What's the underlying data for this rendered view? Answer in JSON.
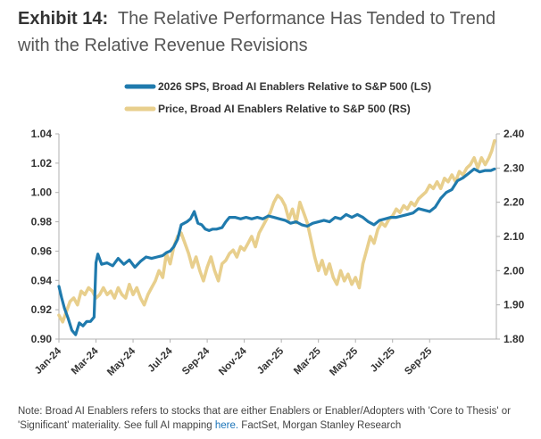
{
  "title": {
    "lead": "Exhibit 14:",
    "text": "The Relative Performance Has Tended to Trend with the Relative Revenue Revisions"
  },
  "note": {
    "prefix": "Note: Broad AI Enablers refers to stocks that are either Enablers or Enabler/Adopters with 'Core to Thesis' or 'Significant' materiality. See full AI mapping",
    "link": "here.",
    "suffix": " FactSet, Morgan Stanley Research"
  },
  "colors": {
    "sps": "#1f7aad",
    "price": "#e8cf8d",
    "axis": "#b0b0b0",
    "tick_text": "#333333"
  },
  "chart_data": {
    "type": "line",
    "xlabels": [
      "Jan-24",
      "Mar-24",
      "May-24",
      "Jul-24",
      "Sep-24",
      "Nov-24",
      "Jan-25",
      "Mar-25",
      "May-25",
      "Jul-25",
      "Sep-25"
    ],
    "x_range": [
      0,
      23.6
    ],
    "y_left": {
      "ticks": [
        "0.90",
        "0.92",
        "0.94",
        "0.96",
        "0.98",
        "1.00",
        "1.02",
        "1.04"
      ],
      "range": [
        0.9,
        1.04
      ]
    },
    "y_right": {
      "ticks": [
        "1.80",
        "1.90",
        "2.00",
        "2.10",
        "2.20",
        "2.30",
        "2.40"
      ],
      "range": [
        1.8,
        2.4
      ]
    },
    "series": [
      {
        "name": "2026 SPS, Broad AI Enablers Relative to S&P 500 (LS)",
        "axis": "left",
        "points": [
          [
            0,
            0.936
          ],
          [
            0.15,
            0.928
          ],
          [
            0.3,
            0.921
          ],
          [
            0.5,
            0.914
          ],
          [
            0.7,
            0.906
          ],
          [
            0.9,
            0.903
          ],
          [
            1.1,
            0.911
          ],
          [
            1.3,
            0.909
          ],
          [
            1.5,
            0.912
          ],
          [
            1.7,
            0.912
          ],
          [
            1.9,
            0.915
          ],
          [
            2.0,
            0.952
          ],
          [
            2.1,
            0.958
          ],
          [
            2.3,
            0.951
          ],
          [
            2.6,
            0.952
          ],
          [
            2.9,
            0.95
          ],
          [
            3.2,
            0.955
          ],
          [
            3.5,
            0.951
          ],
          [
            3.8,
            0.954
          ],
          [
            4.1,
            0.949
          ],
          [
            4.4,
            0.953
          ],
          [
            4.7,
            0.956
          ],
          [
            5.0,
            0.955
          ],
          [
            5.3,
            0.956
          ],
          [
            5.6,
            0.957
          ],
          [
            5.8,
            0.959
          ],
          [
            6.0,
            0.96
          ],
          [
            6.2,
            0.963
          ],
          [
            6.4,
            0.968
          ],
          [
            6.6,
            0.978
          ],
          [
            6.9,
            0.98
          ],
          [
            7.1,
            0.982
          ],
          [
            7.3,
            0.987
          ],
          [
            7.5,
            0.979
          ],
          [
            7.7,
            0.978
          ],
          [
            7.9,
            0.975
          ],
          [
            8.1,
            0.974
          ],
          [
            8.3,
            0.975
          ],
          [
            8.5,
            0.975
          ],
          [
            8.8,
            0.976
          ],
          [
            9.0,
            0.98
          ],
          [
            9.2,
            0.983
          ],
          [
            9.5,
            0.983
          ],
          [
            9.8,
            0.982
          ],
          [
            10.1,
            0.983
          ],
          [
            10.4,
            0.982
          ],
          [
            10.7,
            0.983
          ],
          [
            11.0,
            0.982
          ],
          [
            11.3,
            0.984
          ],
          [
            11.6,
            0.983
          ],
          [
            11.9,
            0.982
          ],
          [
            12.2,
            0.981
          ],
          [
            12.5,
            0.979
          ],
          [
            12.8,
            0.98
          ],
          [
            13.1,
            0.978
          ],
          [
            13.4,
            0.977
          ],
          [
            13.7,
            0.979
          ],
          [
            14.0,
            0.98
          ],
          [
            14.3,
            0.981
          ],
          [
            14.6,
            0.98
          ],
          [
            14.9,
            0.983
          ],
          [
            15.2,
            0.982
          ],
          [
            15.5,
            0.985
          ],
          [
            15.8,
            0.983
          ],
          [
            16.1,
            0.985
          ],
          [
            16.4,
            0.983
          ],
          [
            16.7,
            0.98
          ],
          [
            17.0,
            0.978
          ],
          [
            17.3,
            0.981
          ],
          [
            17.6,
            0.982
          ],
          [
            17.9,
            0.983
          ],
          [
            18.2,
            0.983
          ],
          [
            18.5,
            0.984
          ],
          [
            18.8,
            0.985
          ],
          [
            19.1,
            0.986
          ],
          [
            19.4,
            0.989
          ],
          [
            19.7,
            0.988
          ],
          [
            20.0,
            0.987
          ],
          [
            20.3,
            0.99
          ],
          [
            20.6,
            0.996
          ],
          [
            20.9,
            1.0
          ],
          [
            21.2,
            1.002
          ],
          [
            21.5,
            1.008
          ],
          [
            21.8,
            1.01
          ],
          [
            22.1,
            1.013
          ],
          [
            22.4,
            1.016
          ],
          [
            22.7,
            1.014
          ],
          [
            23.0,
            1.015
          ],
          [
            23.3,
            1.015
          ],
          [
            23.5,
            1.016
          ]
        ]
      },
      {
        "name": "Price, Broad AI Enablers Relative to S&P 500 (RS)",
        "axis": "right",
        "points": [
          [
            0,
            1.87
          ],
          [
            0.2,
            1.85
          ],
          [
            0.4,
            1.88
          ],
          [
            0.6,
            1.91
          ],
          [
            0.8,
            1.92
          ],
          [
            1.0,
            1.9
          ],
          [
            1.2,
            1.94
          ],
          [
            1.4,
            1.93
          ],
          [
            1.6,
            1.95
          ],
          [
            1.8,
            1.94
          ],
          [
            2.0,
            1.92
          ],
          [
            2.2,
            1.93
          ],
          [
            2.4,
            1.95
          ],
          [
            2.6,
            1.93
          ],
          [
            2.8,
            1.94
          ],
          [
            3.0,
            1.92
          ],
          [
            3.2,
            1.95
          ],
          [
            3.4,
            1.93
          ],
          [
            3.6,
            1.92
          ],
          [
            3.8,
            1.96
          ],
          [
            4.0,
            1.93
          ],
          [
            4.2,
            1.95
          ],
          [
            4.4,
            1.92
          ],
          [
            4.6,
            1.9
          ],
          [
            4.8,
            1.93
          ],
          [
            5.0,
            1.95
          ],
          [
            5.2,
            1.97
          ],
          [
            5.4,
            2.0
          ],
          [
            5.6,
            1.98
          ],
          [
            5.8,
            2.05
          ],
          [
            6.0,
            2.02
          ],
          [
            6.2,
            2.07
          ],
          [
            6.4,
            2.1
          ],
          [
            6.6,
            2.11
          ],
          [
            6.8,
            2.08
          ],
          [
            7.0,
            2.05
          ],
          [
            7.2,
            2.01
          ],
          [
            7.4,
            2.04
          ],
          [
            7.6,
            2.0
          ],
          [
            7.8,
            1.97
          ],
          [
            8.0,
            2.01
          ],
          [
            8.2,
            2.04
          ],
          [
            8.4,
            2.0
          ],
          [
            8.6,
            1.97
          ],
          [
            8.8,
            2.02
          ],
          [
            9.0,
            2.03
          ],
          [
            9.2,
            2.05
          ],
          [
            9.4,
            2.06
          ],
          [
            9.6,
            2.04
          ],
          [
            9.8,
            2.07
          ],
          [
            10.0,
            2.06
          ],
          [
            10.2,
            2.08
          ],
          [
            10.4,
            2.1
          ],
          [
            10.6,
            2.07
          ],
          [
            10.8,
            2.11
          ],
          [
            11.0,
            2.13
          ],
          [
            11.2,
            2.15
          ],
          [
            11.4,
            2.17
          ],
          [
            11.6,
            2.2
          ],
          [
            11.8,
            2.22
          ],
          [
            12.0,
            2.21
          ],
          [
            12.2,
            2.19
          ],
          [
            12.4,
            2.15
          ],
          [
            12.6,
            2.18
          ],
          [
            12.8,
            2.14
          ],
          [
            13.0,
            2.2
          ],
          [
            13.2,
            2.17
          ],
          [
            13.4,
            2.14
          ],
          [
            13.6,
            2.09
          ],
          [
            13.8,
            2.04
          ],
          [
            14.0,
            2.0
          ],
          [
            14.2,
            2.03
          ],
          [
            14.4,
            1.99
          ],
          [
            14.6,
            2.02
          ],
          [
            14.8,
            1.98
          ],
          [
            15.0,
            1.96
          ],
          [
            15.2,
            2.0
          ],
          [
            15.4,
            1.97
          ],
          [
            15.6,
            1.99
          ],
          [
            15.8,
            1.96
          ],
          [
            16.0,
            1.98
          ],
          [
            16.2,
            1.95
          ],
          [
            16.4,
            2.02
          ],
          [
            16.6,
            2.06
          ],
          [
            16.8,
            2.1
          ],
          [
            17.0,
            2.08
          ],
          [
            17.2,
            2.12
          ],
          [
            17.4,
            2.14
          ],
          [
            17.6,
            2.13
          ],
          [
            17.8,
            2.15
          ],
          [
            18.0,
            2.16
          ],
          [
            18.2,
            2.18
          ],
          [
            18.4,
            2.17
          ],
          [
            18.6,
            2.19
          ],
          [
            18.8,
            2.18
          ],
          [
            19.0,
            2.2
          ],
          [
            19.2,
            2.19
          ],
          [
            19.4,
            2.21
          ],
          [
            19.6,
            2.22
          ],
          [
            19.8,
            2.23
          ],
          [
            20.0,
            2.25
          ],
          [
            20.2,
            2.24
          ],
          [
            20.4,
            2.26
          ],
          [
            20.6,
            2.24
          ],
          [
            20.8,
            2.27
          ],
          [
            21.0,
            2.26
          ],
          [
            21.2,
            2.28
          ],
          [
            21.4,
            2.26
          ],
          [
            21.6,
            2.29
          ],
          [
            21.8,
            2.28
          ],
          [
            22.0,
            2.3
          ],
          [
            22.2,
            2.31
          ],
          [
            22.4,
            2.33
          ],
          [
            22.6,
            2.3
          ],
          [
            22.8,
            2.33
          ],
          [
            23.0,
            2.31
          ],
          [
            23.2,
            2.33
          ],
          [
            23.35,
            2.35
          ],
          [
            23.5,
            2.38
          ]
        ]
      }
    ]
  }
}
